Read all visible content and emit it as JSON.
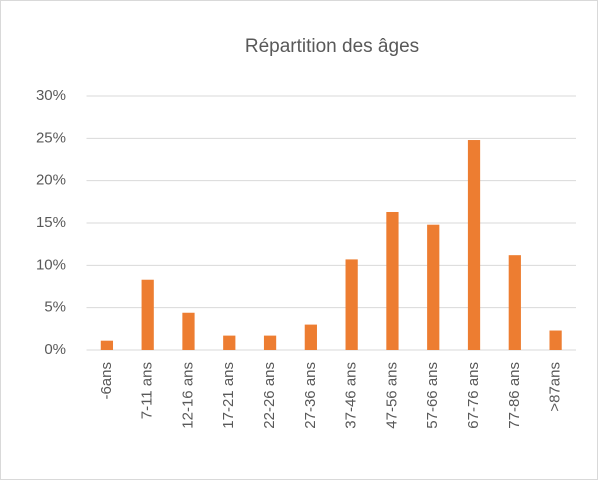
{
  "chart_data": {
    "type": "bar",
    "title": "Répartition des âges",
    "categories": [
      "-6ans",
      "7-11 ans",
      "12-16 ans",
      "17-21 ans",
      "22-26 ans",
      "27-36 ans",
      "37-46 ans",
      "47-56 ans",
      "57-66 ans",
      "67-76 ans",
      "77-86 ans",
      ">87ans"
    ],
    "values": [
      1.1,
      8.3,
      4.4,
      1.7,
      1.7,
      3.0,
      10.7,
      16.3,
      14.8,
      24.8,
      11.2,
      2.3
    ],
    "color": "#ed7d31",
    "ylim": [
      0,
      30
    ],
    "yticks": [
      {
        "value": 0,
        "label": "0%"
      },
      {
        "value": 5,
        "label": "5%"
      },
      {
        "value": 10,
        "label": "10%"
      },
      {
        "value": 15,
        "label": "15%"
      },
      {
        "value": 20,
        "label": "20%"
      },
      {
        "value": 25,
        "label": "25%"
      },
      {
        "value": 30,
        "label": "30%"
      }
    ],
    "grid": true
  }
}
